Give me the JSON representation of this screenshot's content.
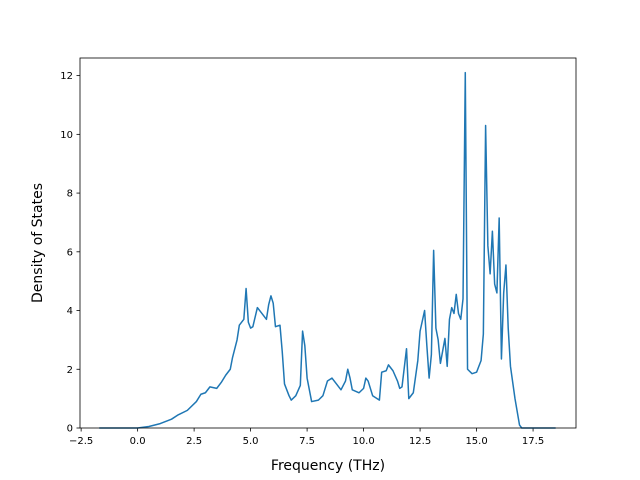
{
  "chart_data": {
    "type": "line",
    "title": "",
    "xlabel": "Frequency (THz)",
    "ylabel": "Density of States",
    "xlim": [
      -2.55,
      19.4
    ],
    "ylim": [
      0,
      12.6
    ],
    "grid": false,
    "line_color": "#1f77b4",
    "x_ticks": [
      {
        "value": -2.5,
        "label": "−2.5"
      },
      {
        "value": 0.0,
        "label": "0.0"
      },
      {
        "value": 2.5,
        "label": "2.5"
      },
      {
        "value": 5.0,
        "label": "5.0"
      },
      {
        "value": 7.5,
        "label": "7.5"
      },
      {
        "value": 10.0,
        "label": "10.0"
      },
      {
        "value": 12.5,
        "label": "12.5"
      },
      {
        "value": 15.0,
        "label": "15.0"
      },
      {
        "value": 17.5,
        "label": "17.5"
      }
    ],
    "y_ticks": [
      {
        "value": 0,
        "label": "0"
      },
      {
        "value": 2,
        "label": "2"
      },
      {
        "value": 4,
        "label": "4"
      },
      {
        "value": 6,
        "label": "6"
      },
      {
        "value": 8,
        "label": "8"
      },
      {
        "value": 10,
        "label": "10"
      },
      {
        "value": 12,
        "label": "12"
      }
    ],
    "series": [
      {
        "points": [
          [
            -1.7,
            0
          ],
          [
            0,
            0
          ],
          [
            0.5,
            0.05
          ],
          [
            1,
            0.15
          ],
          [
            1.5,
            0.3
          ],
          [
            1.8,
            0.45
          ],
          [
            2.2,
            0.6
          ],
          [
            2.6,
            0.9
          ],
          [
            2.8,
            1.15
          ],
          [
            3.0,
            1.2
          ],
          [
            3.2,
            1.4
          ],
          [
            3.5,
            1.35
          ],
          [
            3.7,
            1.55
          ],
          [
            3.9,
            1.8
          ],
          [
            4.1,
            2.0
          ],
          [
            4.2,
            2.4
          ],
          [
            4.4,
            3.0
          ],
          [
            4.5,
            3.5
          ],
          [
            4.7,
            3.7
          ],
          [
            4.8,
            4.75
          ],
          [
            4.9,
            3.6
          ],
          [
            5.0,
            3.4
          ],
          [
            5.1,
            3.45
          ],
          [
            5.3,
            4.1
          ],
          [
            5.5,
            3.9
          ],
          [
            5.7,
            3.7
          ],
          [
            5.8,
            4.2
          ],
          [
            5.9,
            4.5
          ],
          [
            6.0,
            4.25
          ],
          [
            6.1,
            3.45
          ],
          [
            6.3,
            3.5
          ],
          [
            6.4,
            2.6
          ],
          [
            6.5,
            1.5
          ],
          [
            6.7,
            1.1
          ],
          [
            6.8,
            0.95
          ],
          [
            7.0,
            1.1
          ],
          [
            7.2,
            1.45
          ],
          [
            7.3,
            3.3
          ],
          [
            7.4,
            2.8
          ],
          [
            7.5,
            1.7
          ],
          [
            7.7,
            0.9
          ],
          [
            8.0,
            0.95
          ],
          [
            8.2,
            1.1
          ],
          [
            8.4,
            1.6
          ],
          [
            8.6,
            1.7
          ],
          [
            8.8,
            1.5
          ],
          [
            9.0,
            1.3
          ],
          [
            9.2,
            1.6
          ],
          [
            9.3,
            2.0
          ],
          [
            9.4,
            1.7
          ],
          [
            9.5,
            1.3
          ],
          [
            9.8,
            1.2
          ],
          [
            10.0,
            1.35
          ],
          [
            10.1,
            1.7
          ],
          [
            10.2,
            1.6
          ],
          [
            10.4,
            1.1
          ],
          [
            10.7,
            0.95
          ],
          [
            10.8,
            1.9
          ],
          [
            11.0,
            1.95
          ],
          [
            11.1,
            2.15
          ],
          [
            11.3,
            1.95
          ],
          [
            11.5,
            1.6
          ],
          [
            11.6,
            1.35
          ],
          [
            11.7,
            1.4
          ],
          [
            11.9,
            2.7
          ],
          [
            12.0,
            1.0
          ],
          [
            12.2,
            1.2
          ],
          [
            12.4,
            2.3
          ],
          [
            12.5,
            3.3
          ],
          [
            12.7,
            4.0
          ],
          [
            12.8,
            2.8
          ],
          [
            12.9,
            1.7
          ],
          [
            13.0,
            2.5
          ],
          [
            13.1,
            6.05
          ],
          [
            13.2,
            3.4
          ],
          [
            13.3,
            3.0
          ],
          [
            13.4,
            2.2
          ],
          [
            13.6,
            3.05
          ],
          [
            13.7,
            2.1
          ],
          [
            13.8,
            3.7
          ],
          [
            13.9,
            4.1
          ],
          [
            14.0,
            3.9
          ],
          [
            14.1,
            4.55
          ],
          [
            14.2,
            3.9
          ],
          [
            14.3,
            3.7
          ],
          [
            14.4,
            4.4
          ],
          [
            14.5,
            12.1
          ],
          [
            14.6,
            2.0
          ],
          [
            14.8,
            1.85
          ],
          [
            15.0,
            1.9
          ],
          [
            15.2,
            2.3
          ],
          [
            15.3,
            3.2
          ],
          [
            15.4,
            10.3
          ],
          [
            15.5,
            6.2
          ],
          [
            15.6,
            5.25
          ],
          [
            15.7,
            6.7
          ],
          [
            15.8,
            4.9
          ],
          [
            15.9,
            4.6
          ],
          [
            16.0,
            7.15
          ],
          [
            16.1,
            2.35
          ],
          [
            16.2,
            4.6
          ],
          [
            16.3,
            5.55
          ],
          [
            16.4,
            3.4
          ],
          [
            16.5,
            2.1
          ],
          [
            16.7,
            1.0
          ],
          [
            16.9,
            0.1
          ],
          [
            17.0,
            0
          ],
          [
            18.5,
            0
          ]
        ]
      }
    ]
  }
}
